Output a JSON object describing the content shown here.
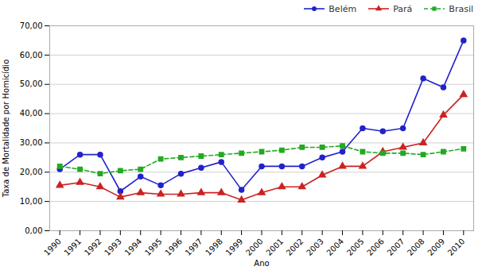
{
  "chart_data": {
    "type": "line",
    "x": [
      1990,
      1991,
      1992,
      1993,
      1994,
      1995,
      1996,
      1997,
      1998,
      1999,
      2000,
      2001,
      2002,
      2003,
      2004,
      2005,
      2006,
      2007,
      2008,
      2009,
      2010
    ],
    "series": [
      {
        "name": "Belém",
        "color": "#2222CC",
        "marker": "circle",
        "line_style": "solid",
        "values": [
          21.0,
          26.0,
          26.0,
          13.5,
          18.5,
          15.5,
          19.5,
          21.5,
          23.5,
          14.0,
          22.0,
          22.0,
          22.0,
          25.0,
          27.0,
          35.0,
          34.0,
          35.0,
          52.0,
          49.0,
          65.0
        ]
      },
      {
        "name": "Pará",
        "color": "#CC2222",
        "marker": "triangle",
        "line_style": "solid",
        "values": [
          15.5,
          16.5,
          15.0,
          11.5,
          13.0,
          12.5,
          12.5,
          13.0,
          13.0,
          10.5,
          13.0,
          15.0,
          15.0,
          19.0,
          22.0,
          22.0,
          27.0,
          28.5,
          30.0,
          39.5,
          46.5
        ]
      },
      {
        "name": "Brasil",
        "color": "#22AA22",
        "marker": "square",
        "line_style": "dashed",
        "values": [
          22.0,
          21.0,
          19.5,
          20.5,
          21.0,
          24.5,
          25.0,
          25.5,
          26.0,
          26.5,
          27.0,
          27.5,
          28.5,
          28.5,
          29.0,
          27.0,
          26.5,
          26.5,
          26.0,
          27.0,
          28.0
        ]
      }
    ],
    "xlabel": "Ano",
    "ylabel": "Taxa de Mortalidade por Homicídio",
    "xlim": [
      1989.5,
      2010.5
    ],
    "xticks": [
      1990,
      1991,
      1992,
      1993,
      1994,
      1995,
      1996,
      1997,
      1998,
      1999,
      2000,
      2001,
      2002,
      2003,
      2004,
      2005,
      2006,
      2007,
      2008,
      2009,
      2010
    ],
    "ylim": [
      0,
      70
    ],
    "yticks": [
      {
        "value": 0,
        "label": "0,00"
      },
      {
        "value": 10,
        "label": "10,00"
      },
      {
        "value": 20,
        "label": "20,00"
      },
      {
        "value": 30,
        "label": "30,00"
      },
      {
        "value": 40,
        "label": "40,00"
      },
      {
        "value": 50,
        "label": "50,00"
      },
      {
        "value": 60,
        "label": "60,00"
      },
      {
        "value": 70,
        "label": "70,00"
      }
    ],
    "grid": "y",
    "legend": "upper right"
  }
}
